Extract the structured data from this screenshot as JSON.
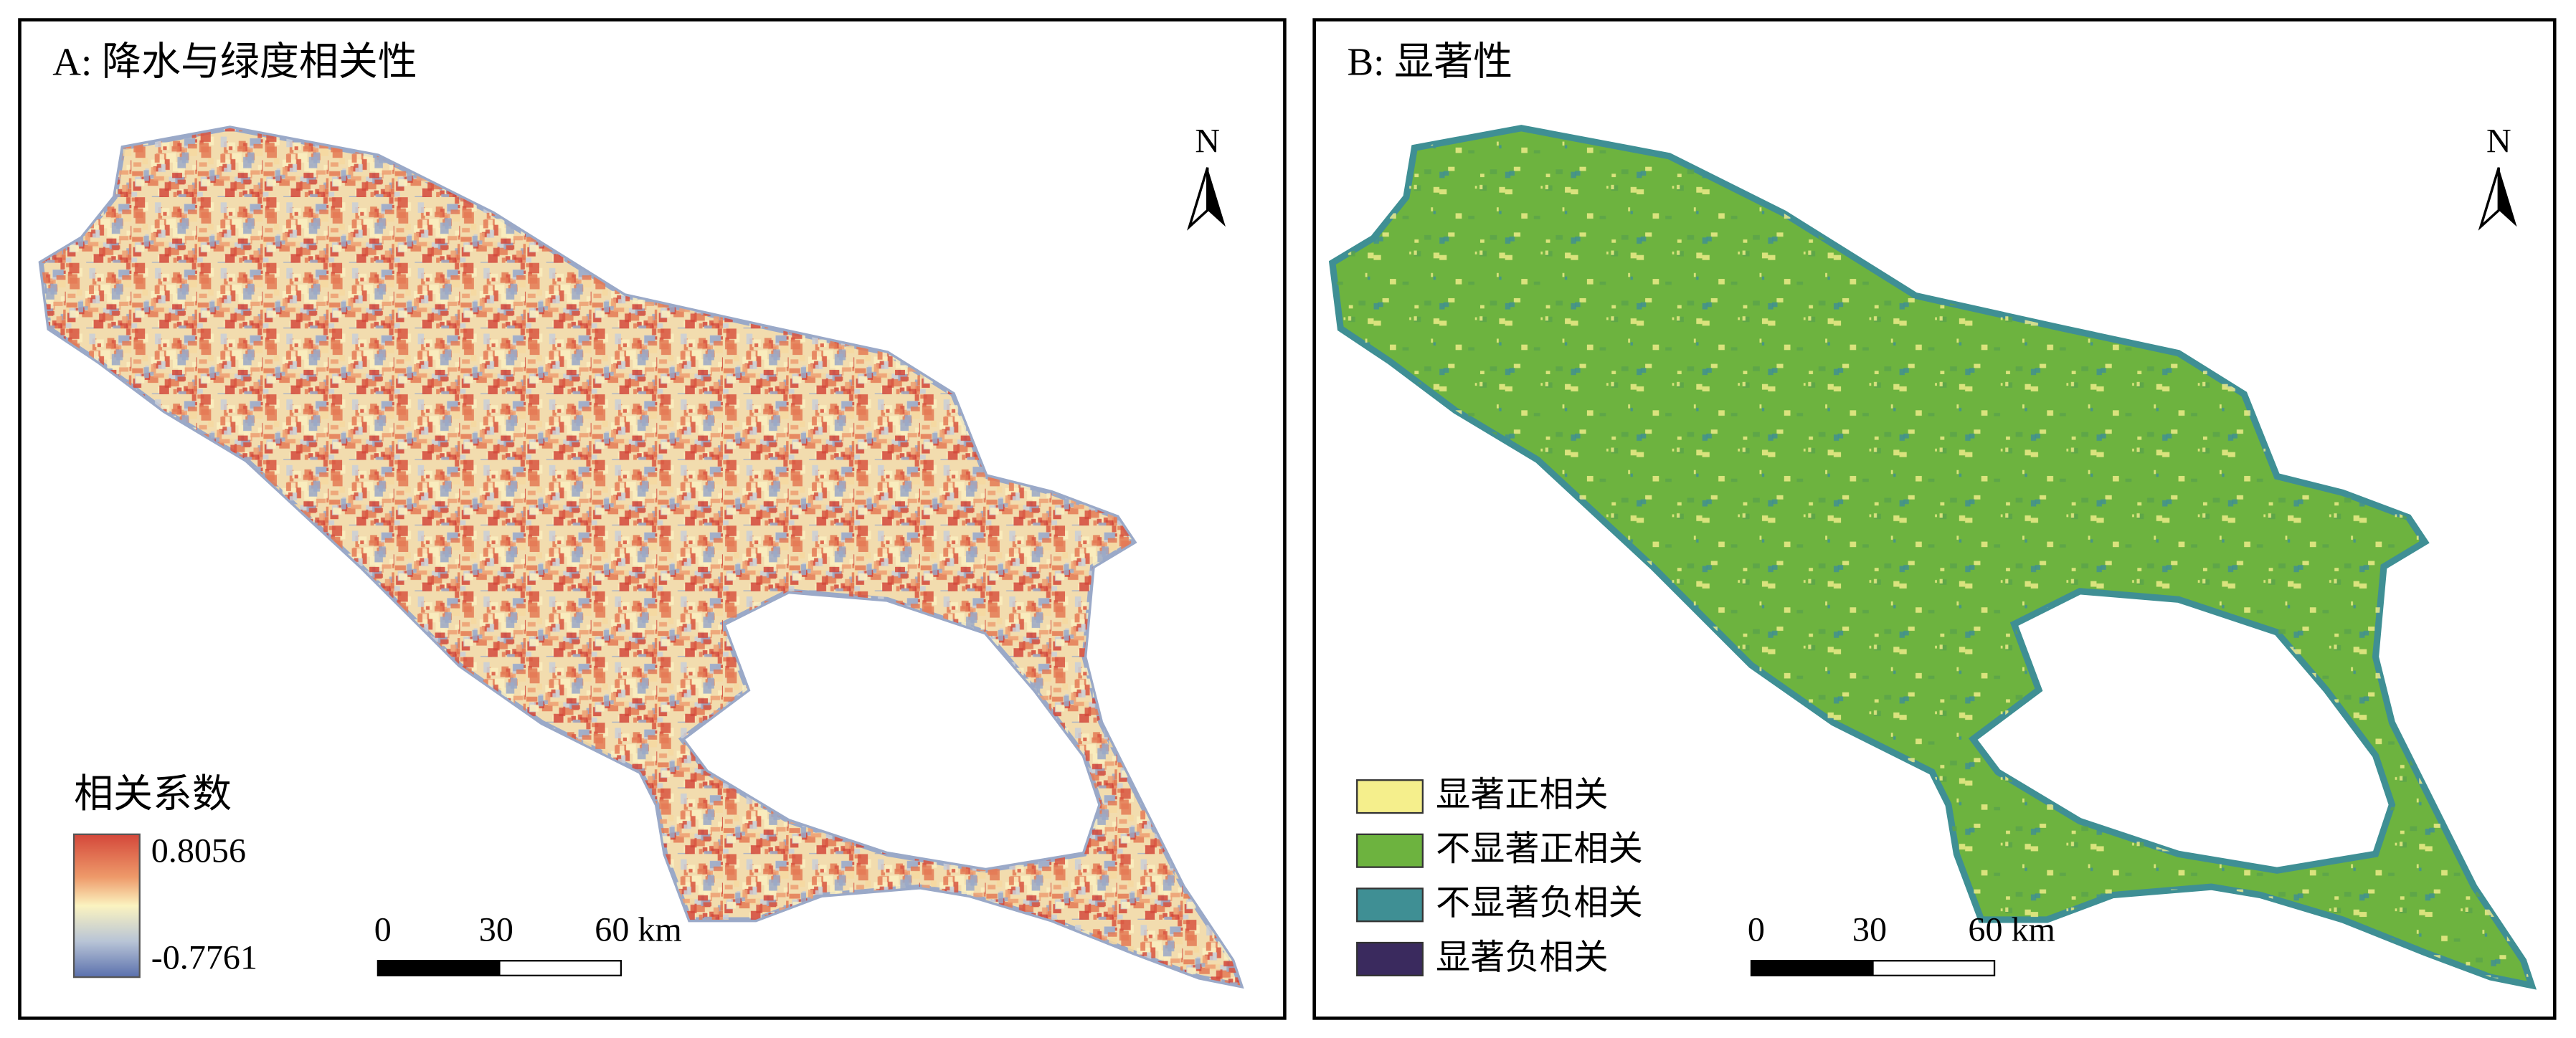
{
  "panels": [
    {
      "title": "A: 降水与绿度相关性",
      "north": "N",
      "legend": {
        "title": "相关系数",
        "max": "0.8056",
        "min": "-0.7761"
      },
      "scale_bar": [
        "0",
        "30",
        "60 km"
      ]
    },
    {
      "title": "B: 显著性",
      "north": "N",
      "legend": {
        "items": [
          {
            "label": "显著正相关",
            "color": "#f5ef8c"
          },
          {
            "label": "不显著正相关",
            "color": "#6db33f"
          },
          {
            "label": "不显著负相关",
            "color": "#3f8f94"
          },
          {
            "label": "显著负相关",
            "color": "#3a2a5e"
          }
        ]
      },
      "scale_bar": [
        "0",
        "30",
        "60 km"
      ]
    }
  ]
}
